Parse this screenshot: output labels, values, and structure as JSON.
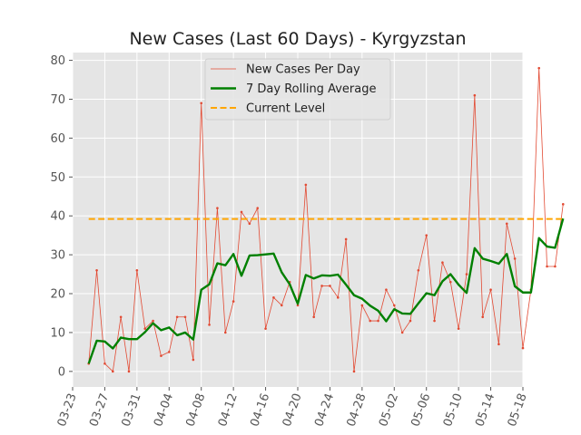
{
  "chart_data": {
    "type": "line",
    "title": "New Cases (Last 60 Days) - Kyrgyzstan",
    "xlabel": "",
    "ylabel": "",
    "x_start_date": "2020-03-25",
    "xlim": [
      "2020-03-23",
      "2020-05-18"
    ],
    "ylim": [
      -4,
      82
    ],
    "x_ticks": [
      "03-23",
      "03-27",
      "03-31",
      "04-04",
      "04-08",
      "04-12",
      "04-16",
      "04-20",
      "04-24",
      "04-28",
      "05-02",
      "05-06",
      "05-10",
      "05-14",
      "05-18"
    ],
    "y_ticks": [
      0,
      10,
      20,
      30,
      40,
      50,
      60,
      70,
      80
    ],
    "grid": true,
    "legend_position": "top-center",
    "colors": {
      "daily": "#e24a33",
      "rolling": "#008000",
      "current": "#ffa500",
      "axes_bg": "#e5e5e5",
      "grid": "#ffffff",
      "tick_text": "#555555"
    },
    "series": [
      {
        "name": "New Cases Per Day",
        "style": "thin-line-with-markers",
        "values": [
          2,
          26,
          2,
          0,
          14,
          0,
          26,
          11,
          13,
          4,
          5,
          14,
          14,
          3,
          69,
          12,
          42,
          10,
          18,
          41,
          38,
          42,
          11,
          19,
          17,
          23,
          17,
          48,
          14,
          22,
          22,
          19,
          34,
          0,
          17,
          13,
          13,
          21,
          17,
          10,
          13,
          26,
          35,
          13,
          28,
          23,
          11,
          25,
          71,
          14,
          21,
          7,
          38,
          29,
          6,
          21,
          78,
          27,
          27,
          43
        ]
      },
      {
        "name": "7 Day Rolling Average",
        "style": "thick-line",
        "values": [
          2.0,
          7.9,
          7.7,
          5.9,
          8.7,
          8.3,
          8.3,
          10.1,
          12.4,
          10.6,
          11.3,
          9.3,
          10.0,
          8.2,
          21.0,
          22.4,
          27.8,
          27.3,
          30.2,
          24.6,
          29.8,
          29.9,
          30.1,
          30.3,
          25.5,
          22.4,
          17.4,
          24.8,
          23.9,
          24.7,
          24.6,
          24.9,
          22.3,
          19.6,
          18.7,
          16.9,
          15.6,
          12.9,
          16.0,
          14.9,
          14.8,
          17.5,
          20.1,
          19.6,
          23.2,
          25.0,
          22.3,
          20.2,
          31.7,
          29.0,
          28.4,
          27.7,
          30.2,
          21.9,
          20.3,
          20.3,
          34.3,
          32.1,
          31.8,
          39.3
        ]
      },
      {
        "name": "Current Level",
        "style": "dashed-horizontal",
        "values": [
          39.2
        ]
      }
    ]
  }
}
